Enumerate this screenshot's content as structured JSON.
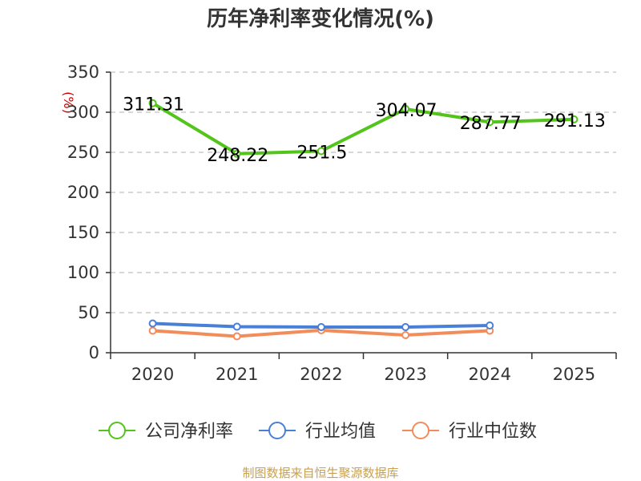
{
  "chart_data": {
    "type": "line",
    "title": "历年净利率变化情况(%)",
    "unit_label": "(%)",
    "categories": [
      "2020",
      "2021",
      "2022",
      "2023",
      "2024",
      "2025"
    ],
    "ylim": [
      0,
      350
    ],
    "yticks": [
      0,
      50,
      100,
      150,
      200,
      250,
      300,
      350
    ],
    "grid": true,
    "series": [
      {
        "name": "公司净利率",
        "color": "#52c41a",
        "values": [
          311.31,
          248.22,
          251.5,
          304.07,
          287.77,
          291.13
        ],
        "labels": [
          "311.31",
          "248.22",
          "251.5",
          "304.07",
          "287.77",
          "291.13"
        ]
      },
      {
        "name": "行业均值",
        "color": "#4a7fd8",
        "values": [
          36.5,
          32.5,
          32.0,
          32.0,
          34.0,
          null
        ]
      },
      {
        "name": "行业中位数",
        "color": "#f28c5a",
        "values": [
          27.5,
          20.5,
          28.0,
          22.0,
          27.5,
          null
        ]
      }
    ],
    "legend_position": "bottom",
    "source": "制图数据来自恒生聚源数据库"
  }
}
